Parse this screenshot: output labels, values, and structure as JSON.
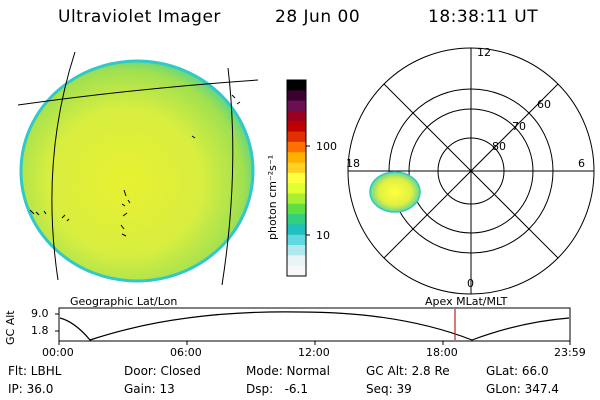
{
  "header": {
    "instrument": "Ultraviolet Imager",
    "date": "28 Jun 00",
    "time": "18:38:11 UT"
  },
  "colorbar": {
    "unit": "photon cm⁻²s⁻¹",
    "ticks": [
      "100",
      "10"
    ],
    "colors": [
      "#000000",
      "#3a0030",
      "#6a1050",
      "#9a0020",
      "#c00000",
      "#e03000",
      "#ff7000",
      "#ffb000",
      "#ffd020",
      "#ffff40",
      "#e0ff30",
      "#a8f030",
      "#60e040",
      "#30d080",
      "#20c0c0",
      "#60d8e0",
      "#b0e8f0",
      "#e8f4f8",
      "#f8f8f8"
    ]
  },
  "polar": {
    "labels": {
      "top": "12",
      "left": "18",
      "right": "6",
      "bottom": "0",
      "lat60": "60",
      "lat70": "70",
      "lat80": "80"
    }
  },
  "altplot": {
    "title_left": "Geographic Lat/Lon",
    "title_right": "Apex MLat/MLT",
    "ylabel": "GC Alt",
    "yticks": [
      "9.0",
      "1.8"
    ],
    "xticks": [
      "00:00",
      "06:00",
      "12:00",
      "18:00",
      "23:59"
    ],
    "marker_time": "18:38"
  },
  "info": {
    "row1": [
      "Flt: LBHL",
      "Door: Closed",
      "Mode: Normal",
      "GC Alt: 2.8 Re",
      "GLat: 66.0"
    ],
    "row2": [
      "IP: 36.0",
      "Gain: 13",
      "Dsp:   -6.1",
      "Seq: 39",
      "GLon: 347.4"
    ]
  }
}
